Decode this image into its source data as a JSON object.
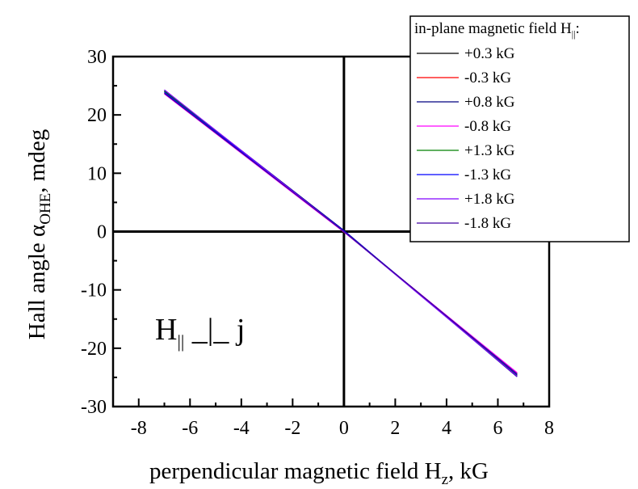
{
  "chart_data": {
    "type": "line",
    "xlabel": "perpendicular magnetic field H",
    "xlabel_sub": "z",
    "xlabel_unit": ", kG",
    "ylabel": "Hall angle α",
    "ylabel_sub": "OHE",
    "ylabel_unit": ", mdeg",
    "xlim": [
      -9,
      8
    ],
    "ylim": [
      -30,
      30
    ],
    "x_ticks": [
      -8,
      -6,
      -4,
      -2,
      0,
      2,
      4,
      6,
      8
    ],
    "y_ticks": [
      -30,
      -20,
      -10,
      0,
      10,
      20,
      30
    ],
    "grid": false,
    "legend_position": "top-right",
    "legend_title": "in-plane magnetic field H",
    "legend_title_sub": "||",
    "legend_title_suffix": ":",
    "annotation": {
      "main": "H",
      "sub": "||",
      "rest": " _|_ j"
    },
    "series": [
      {
        "name": "+0.3 kG",
        "color": "#000000",
        "x": [
          -7.0,
          0,
          6.75
        ],
        "y": [
          24.0,
          0.1,
          -24.6
        ]
      },
      {
        "name": "-0.3 kG",
        "color": "#ff0000",
        "x": [
          -7.0,
          0,
          6.75
        ],
        "y": [
          23.8,
          0.0,
          -24.3
        ]
      },
      {
        "name": "+0.8 kG",
        "color": "#000080",
        "x": [
          -7.0,
          0,
          6.75
        ],
        "y": [
          24.2,
          0.2,
          -24.9
        ]
      },
      {
        "name": "-0.8 kG",
        "color": "#ff00ff",
        "x": [
          -7.0,
          0,
          6.75
        ],
        "y": [
          23.6,
          -0.1,
          -24.2
        ]
      },
      {
        "name": "+1.3 kG",
        "color": "#008000",
        "x": [
          -7.0,
          0,
          6.75
        ],
        "y": [
          24.1,
          0.0,
          -24.7
        ]
      },
      {
        "name": "-1.3 kG",
        "color": "#0000ff",
        "x": [
          -7.0,
          0,
          6.75
        ],
        "y": [
          23.9,
          0.1,
          -24.5
        ]
      },
      {
        "name": "+1.8 kG",
        "color": "#8000ff",
        "x": [
          -7.0,
          0,
          6.75
        ],
        "y": [
          24.3,
          0.0,
          -24.8
        ]
      },
      {
        "name": "-1.8 kG",
        "color": "#4000a0",
        "x": [
          -7.0,
          0,
          6.75
        ],
        "y": [
          23.7,
          0.0,
          -24.4
        ]
      }
    ]
  }
}
